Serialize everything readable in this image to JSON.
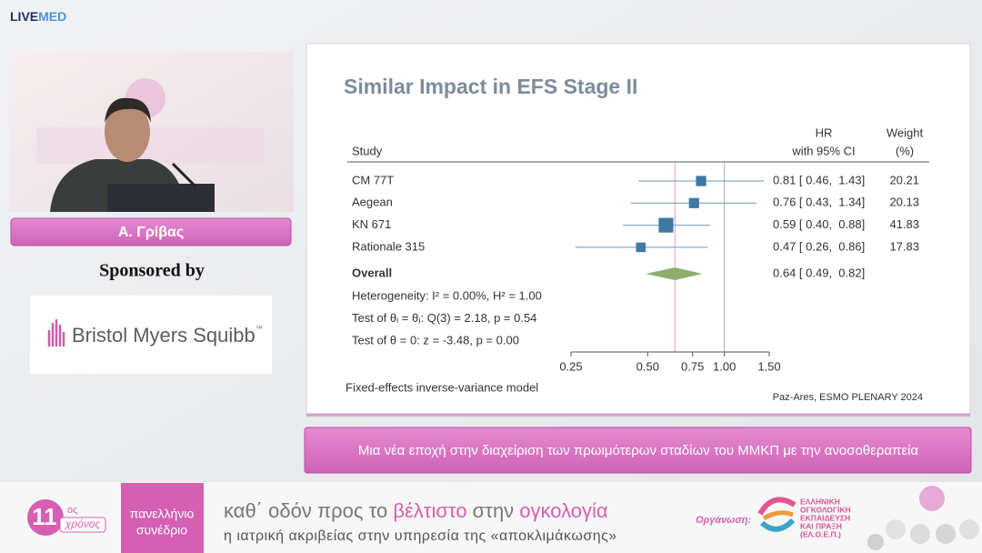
{
  "header": {
    "logo_bold": "LIVE",
    "logo_light": "MED"
  },
  "speaker": {
    "name": "Α. Γρίβας"
  },
  "sponsor": {
    "label": "Sponsored by",
    "company": "Bristol Myers Squibb",
    "mark": "™"
  },
  "slide": {
    "type": "forest",
    "title": "Similar Impact in EFS Stage II",
    "study_header": "Study",
    "hr_header": [
      "HR",
      "with 95% CI"
    ],
    "weight_header": [
      "Weight",
      "(%)"
    ],
    "xlog": true,
    "xlim": [
      0.25,
      1.5
    ],
    "xticks": [
      0.25,
      {
        "value": 0.5,
        "label": "0.50"
      },
      0.75,
      {
        "value": 1,
        "label": "1.00"
      },
      {
        "value": 1.5,
        "label": "1.50"
      }
    ],
    "reference_line": {
      "value": 1,
      "label": "1.00"
    },
    "colors": {
      "square": "#3f79a5",
      "ci": "#6f98ba",
      "diamond": "#8fae6c",
      "overall_line": "#e3a0c4",
      "reference_line": "#aaaaaa"
    },
    "studies": [
      {
        "name": "CM 77T",
        "hr": 0.81,
        "ci": [
          0.46,
          1.43
        ],
        "weight": 20.21,
        "label": "0.81 [ 0.46,  1.43]"
      },
      {
        "name": "Aegean",
        "hr": 0.76,
        "ci": [
          0.43,
          1.34
        ],
        "weight": 20.13,
        "label": "0.76 [ 0.43,  1.34]"
      },
      {
        "name": "KN 671",
        "hr": 0.59,
        "ci": [
          0.4,
          0.88
        ],
        "weight": 41.83,
        "label": "0.59 [ 0.40,  0.88]"
      },
      {
        "name": "Rationale 315",
        "hr": 0.47,
        "ci": [
          0.26,
          0.86
        ],
        "weight": 17.83,
        "label": "0.47 [ 0.26,  0.86]"
      }
    ],
    "overall": {
      "name": "Overall",
      "hr": 0.64,
      "ci": [
        0.49,
        0.82
      ],
      "label": "0.64 [ 0.49,  0.82]"
    },
    "notes": [
      "Heterogeneity: I² = 0.00%, H² = 1.00",
      "Test of θᵢ = θⱼ: Q(3) = 2.18, p = 0.54",
      "Test of θ = 0: z = -3.48, p = 0.00"
    ],
    "model": "Fixed-effects inverse-variance model",
    "source": "Paz-Ares, ESMO PLENARY 2024"
  },
  "caption": "Μια νέα εποχή στην διαχείριση των πρωιμότερων σταδίων του ΜΜΚΠ με την ανοσοθεραπεία",
  "banner": {
    "edition": "11",
    "edition_suffix": "ος",
    "edition_word": "χρόνος",
    "congress": [
      "πανελλήνιο",
      "συνέδριο"
    ],
    "tagline": [
      {
        "text": "καθ΄ οδόν προς το ",
        "accent": false
      },
      {
        "text": "βέλτιστο",
        "accent": true
      },
      {
        "text": " στην ",
        "accent": false
      },
      {
        "text": "ογκολογία",
        "accent": true
      }
    ],
    "subtitle": "η ιατρική ακριβείας στην υπηρεσία της «αποκλιμάκωσης»",
    "organizer_label": "Οργάνωση:",
    "organizer": [
      "ΕΛΛΗΝΙΚΗ",
      "ΟΓΚΟΛΟΓΙΚΗ",
      "ΕΚΠΑΙΔΕΥΣΗ",
      "ΚΑΙ ΠΡΑΞΗ",
      "(ΕΛ.Ο.Ε.Π.)"
    ]
  }
}
